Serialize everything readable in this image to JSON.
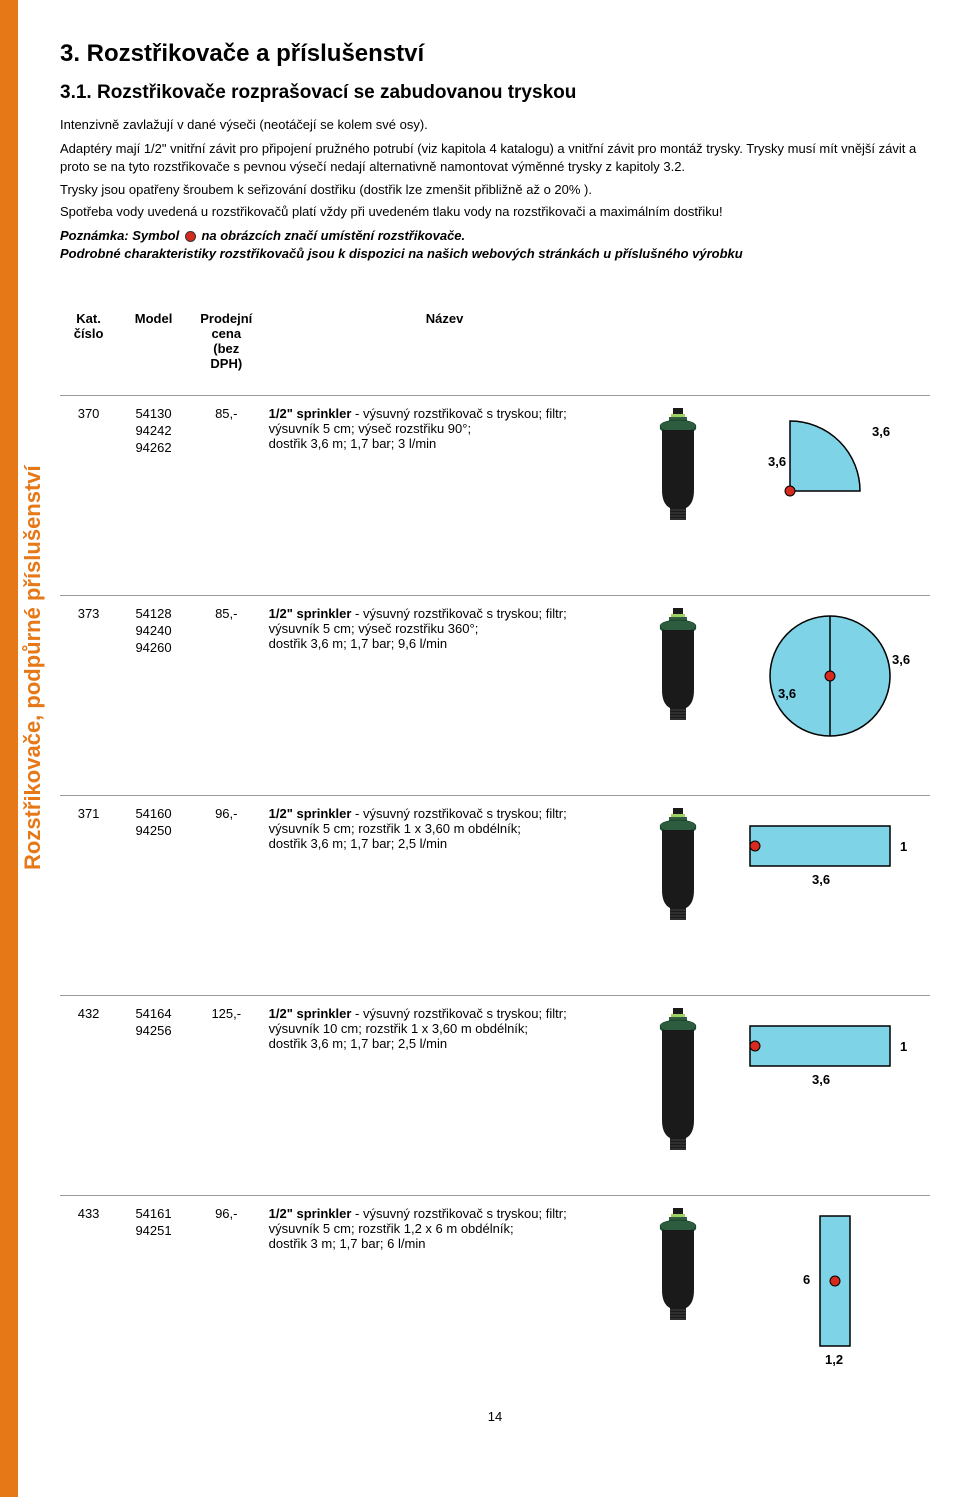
{
  "side_label": "Rozstřikovače, podpůrné příslušenství",
  "section_number": "3. Rozstřikovače a příslušenství",
  "subsection": "3.1. Rozstřikovače rozprašovací se zabudovanou tryskou",
  "intro": "Intenzivně zavlažují v dané výseči (neotáčejí se kolem své osy).",
  "body1": "Adaptéry mají 1/2\" vnitřní závit pro připojení pružného potrubí (viz kapitola 4 katalogu) a vnitřní závit pro montáž trysky. Trysky musí mít vnější závit a proto se na tyto rozstřikovače s pevnou výsečí nedají alternativně namontovat výměnné trysky z kapitoly 3.2.",
  "body2": "Trysky jsou opatřeny šroubem k seřizování dostřiku (dostřik lze zmenšit přibližně až o 20% ).",
  "body3": "Spotřeba vody uvedená u rozstřikovačů platí vždy při uvedeném tlaku vody na rozstřikovači a maximálním dostřiku!",
  "note_prefix": "Poznámka: Symbol",
  "note_suffix": "na obrázcích značí umístění rozstřikovače.",
  "note2": "Podrobné charakteristiky rozstřikovačů jsou k dispozici na našich webových stránkách u příslušného výrobku",
  "headers": {
    "kat": "Kat.\nčíslo",
    "model": "Model",
    "price": "Prodejní\ncena\n(bez DPH)",
    "name": "Název"
  },
  "rows": [
    {
      "kat": "370",
      "models": [
        "54130",
        "94242",
        "94262"
      ],
      "price": "85,-",
      "desc_bold": "1/2\" sprinkler",
      "desc_rest": " - výsuvný rozstřikovač s tryskou; filtr;\nvýsuvník 5 cm; výseč rozstřiku 90°;\ndostřik 3,6 m; 1,7 bar; 3 l/min",
      "diagram_type": "quarter",
      "diag_label_top": "3,6",
      "diag_label_left": "3,6",
      "sprinkler_tall": false
    },
    {
      "kat": "373",
      "models": [
        "54128",
        "94240",
        "94260"
      ],
      "price": "85,-",
      "desc_bold": "1/2\" sprinkler",
      "desc_rest": " - výsuvný rozstřikovač s tryskou; filtr;\nvýsuvník 5 cm; výseč rozstřiku 360°;\ndostřik 3,6 m; 1,7 bar; 9,6 l/min",
      "diagram_type": "circle",
      "diag_label_right": "3,6",
      "diag_label_left": "3,6",
      "sprinkler_tall": false
    },
    {
      "kat": "371",
      "models": [
        "54160",
        "94250"
      ],
      "price": "96,-",
      "desc_bold": "1/2\" sprinkler",
      "desc_rest": " - výsuvný rozstřikovač s tryskou; filtr;\nvýsuvník 5 cm; rozstřik 1 x 3,60 m obdélník;\ndostřik 3,6 m; 1,7 bar; 2,5 l/min",
      "diagram_type": "rect_wide",
      "diag_label_bottom": "3,6",
      "diag_label_right": "1",
      "sprinkler_tall": false
    },
    {
      "kat": "432",
      "models": [
        "54164",
        "94256"
      ],
      "price": "125,-",
      "desc_bold": "1/2\" sprinkler",
      "desc_rest": " - výsuvný rozstřikovač s tryskou; filtr;\nvýsuvník 10 cm; rozstřik 1 x 3,60 m obdélník;\ndostřik 3,6 m; 1,7 bar; 2,5 l/min",
      "diagram_type": "rect_wide",
      "diag_label_bottom": "3,6",
      "diag_label_right": "1",
      "sprinkler_tall": true
    },
    {
      "kat": "433",
      "models": [
        "54161",
        "94251"
      ],
      "price": "96,-",
      "desc_bold": "1/2\" sprinkler",
      "desc_rest": " - výsuvný rozstřikovač s tryskou; filtr;\nvýsuvník 5 cm; rozstřik 1,2 x 6 m obdélník;\ndostřik 3 m; 1,7 bar; 6 l/min",
      "diagram_type": "rect_tall",
      "diag_label_left": "6",
      "diag_label_bottom": "1,2",
      "sprinkler_tall": false
    }
  ],
  "page_number": "14",
  "colors": {
    "orange": "#e67817",
    "cyan": "#7fd3e6",
    "red_dot": "#d52b1e",
    "stroke": "#000000",
    "sprinkler_body": "#1a1a1a",
    "sprinkler_green": "#2d5c3e",
    "sprinkler_lime": "#9fce63"
  }
}
